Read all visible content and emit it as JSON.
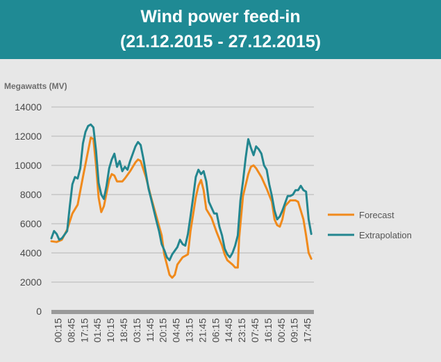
{
  "header": {
    "title_line1": "Wind power feed-in",
    "title_line2": "(21.12.2015 - 27.12.2015)"
  },
  "colors": {
    "header_bg": "#1f8a94",
    "forecast": "#f08a1c",
    "extrapolation": "#23868f"
  },
  "chart_data": {
    "type": "line",
    "ylabel": "Megawatts (MV)",
    "ylim": [
      0,
      14000
    ],
    "yticks": [
      0,
      2000,
      4000,
      6000,
      8000,
      10000,
      12000,
      14000
    ],
    "xtick_labels": [
      "00:15",
      "08:45",
      "17:15",
      "01:45",
      "10:15",
      "18:45",
      "03:15",
      "11:45",
      "20:15",
      "04:45",
      "13:15",
      "21:45",
      "06:15",
      "14:45",
      "23:15",
      "07:45",
      "16:15",
      "00:45",
      "09:15",
      "17:45"
    ],
    "x_domain": [
      0,
      100
    ],
    "grid": true,
    "legend_position": "right",
    "series": [
      {
        "name": "Forecast",
        "color": "#f08a1c",
        "points": [
          [
            0,
            4800
          ],
          [
            2,
            4750
          ],
          [
            4,
            4900
          ],
          [
            6,
            5600
          ],
          [
            8,
            6700
          ],
          [
            10,
            7300
          ],
          [
            12,
            9200
          ],
          [
            14,
            11000
          ],
          [
            15,
            11900
          ],
          [
            16,
            11800
          ],
          [
            17,
            10000
          ],
          [
            18,
            7800
          ],
          [
            19,
            6800
          ],
          [
            20,
            7200
          ],
          [
            22,
            9000
          ],
          [
            23,
            9400
          ],
          [
            24,
            9300
          ],
          [
            25,
            8900
          ],
          [
            27,
            8900
          ],
          [
            28,
            9100
          ],
          [
            30,
            9600
          ],
          [
            32,
            10200
          ],
          [
            33,
            10400
          ],
          [
            34,
            10300
          ],
          [
            36,
            9200
          ],
          [
            38,
            7800
          ],
          [
            40,
            6500
          ],
          [
            42,
            5200
          ],
          [
            43,
            3900
          ],
          [
            44,
            3200
          ],
          [
            45,
            2500
          ],
          [
            46,
            2300
          ],
          [
            47,
            2500
          ],
          [
            48,
            3200
          ],
          [
            50,
            3700
          ],
          [
            52,
            3900
          ],
          [
            53,
            5500
          ],
          [
            55,
            7800
          ],
          [
            56,
            8600
          ],
          [
            57,
            9000
          ],
          [
            58,
            8300
          ],
          [
            59,
            7000
          ],
          [
            61,
            6400
          ],
          [
            63,
            5400
          ],
          [
            65,
            4500
          ],
          [
            66,
            3900
          ],
          [
            67,
            3500
          ],
          [
            69,
            3200
          ],
          [
            70,
            3000
          ],
          [
            71,
            3000
          ],
          [
            71.5,
            5000
          ],
          [
            73,
            7900
          ],
          [
            75,
            9400
          ],
          [
            76,
            9900
          ],
          [
            77,
            10000
          ],
          [
            78,
            9800
          ],
          [
            80,
            9200
          ],
          [
            82,
            8400
          ],
          [
            84,
            7500
          ],
          [
            85,
            6300
          ],
          [
            86,
            5900
          ],
          [
            87,
            5800
          ],
          [
            88,
            6300
          ],
          [
            89,
            7200
          ],
          [
            91,
            7600
          ],
          [
            93,
            7600
          ],
          [
            94,
            7500
          ],
          [
            96,
            6300
          ],
          [
            97,
            5200
          ],
          [
            98,
            4000
          ],
          [
            99,
            3600
          ]
        ]
      },
      {
        "name": "Extrapolation",
        "color": "#23868f",
        "points": [
          [
            0,
            5000
          ],
          [
            1,
            5500
          ],
          [
            2,
            5300
          ],
          [
            3,
            4900
          ],
          [
            4,
            5000
          ],
          [
            6,
            5500
          ],
          [
            7,
            7200
          ],
          [
            8,
            8700
          ],
          [
            9,
            9200
          ],
          [
            10,
            9100
          ],
          [
            11,
            9800
          ],
          [
            12,
            11500
          ],
          [
            13,
            12300
          ],
          [
            14,
            12700
          ],
          [
            15,
            12800
          ],
          [
            16,
            12600
          ],
          [
            17,
            11000
          ],
          [
            18,
            8800
          ],
          [
            19,
            8000
          ],
          [
            20,
            7700
          ],
          [
            21,
            8600
          ],
          [
            22,
            9800
          ],
          [
            23,
            10400
          ],
          [
            24,
            10800
          ],
          [
            25,
            9900
          ],
          [
            26,
            10300
          ],
          [
            27,
            9600
          ],
          [
            28,
            9900
          ],
          [
            29,
            9700
          ],
          [
            30,
            10300
          ],
          [
            31,
            10800
          ],
          [
            32,
            11300
          ],
          [
            33,
            11600
          ],
          [
            34,
            11400
          ],
          [
            35,
            10500
          ],
          [
            37,
            8400
          ],
          [
            38,
            7700
          ],
          [
            40,
            6200
          ],
          [
            41,
            5500
          ],
          [
            42,
            4600
          ],
          [
            43,
            4200
          ],
          [
            44,
            3700
          ],
          [
            45,
            3500
          ],
          [
            46,
            3900
          ],
          [
            48,
            4400
          ],
          [
            49,
            4900
          ],
          [
            50,
            4600
          ],
          [
            51,
            4500
          ],
          [
            52,
            5300
          ],
          [
            53,
            6500
          ],
          [
            54,
            7800
          ],
          [
            55,
            9200
          ],
          [
            56,
            9700
          ],
          [
            57,
            9400
          ],
          [
            58,
            9600
          ],
          [
            59,
            8900
          ],
          [
            60,
            7500
          ],
          [
            62,
            6700
          ],
          [
            63,
            6700
          ],
          [
            64,
            5800
          ],
          [
            65,
            5200
          ],
          [
            66,
            4300
          ],
          [
            67,
            3900
          ],
          [
            68,
            3700
          ],
          [
            69,
            4000
          ],
          [
            70,
            4500
          ],
          [
            71,
            5200
          ],
          [
            72,
            7600
          ],
          [
            73,
            8900
          ],
          [
            74,
            10500
          ],
          [
            75,
            11800
          ],
          [
            76,
            11200
          ],
          [
            77,
            10700
          ],
          [
            78,
            11300
          ],
          [
            79,
            11100
          ],
          [
            80,
            10800
          ],
          [
            81,
            10000
          ],
          [
            82,
            9700
          ],
          [
            83,
            8700
          ],
          [
            84,
            7900
          ],
          [
            85,
            6900
          ],
          [
            86,
            6300
          ],
          [
            87,
            6500
          ],
          [
            88,
            6900
          ],
          [
            89,
            7400
          ],
          [
            90,
            7900
          ],
          [
            91,
            7900
          ],
          [
            92,
            8000
          ],
          [
            93,
            8300
          ],
          [
            94,
            8300
          ],
          [
            95,
            8600
          ],
          [
            96,
            8300
          ],
          [
            97,
            8200
          ],
          [
            98,
            6300
          ],
          [
            99,
            5300
          ]
        ]
      }
    ]
  }
}
